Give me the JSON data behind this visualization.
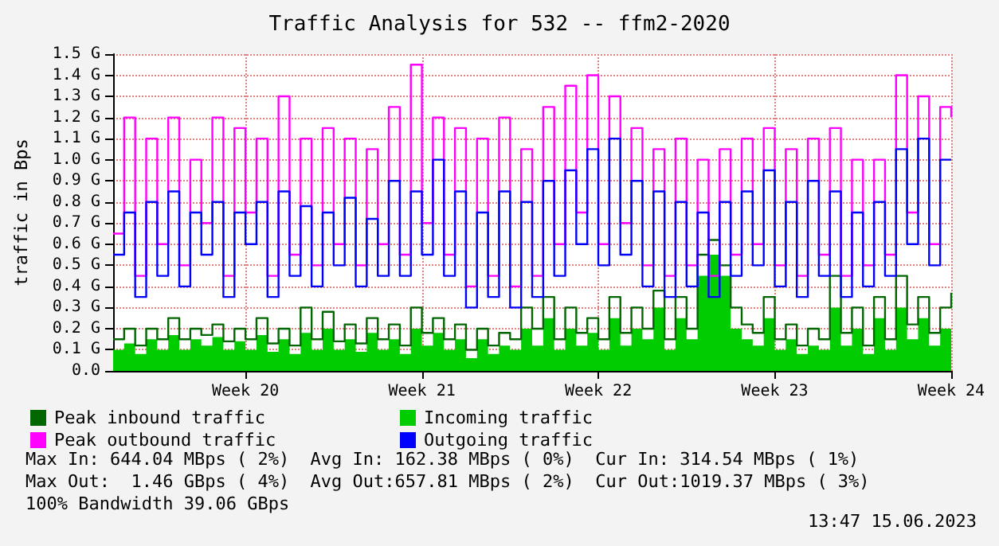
{
  "chart_data": {
    "type": "step",
    "title": "Traffic Analysis for 532 -- ffm2-2020",
    "ylabel": "traffic in Bps",
    "categories": [
      null,
      null,
      null,
      null,
      null,
      null,
      null,
      null,
      null,
      null,
      null,
      null,
      "Week 20",
      null,
      null,
      null,
      null,
      null,
      null,
      null,
      null,
      null,
      null,
      null,
      null,
      null,
      null,
      null,
      "Week 21",
      null,
      null,
      null,
      null,
      null,
      null,
      null,
      null,
      null,
      null,
      null,
      null,
      null,
      null,
      null,
      "Week 22",
      null,
      null,
      null,
      null,
      null,
      null,
      null,
      null,
      null,
      null,
      null,
      null,
      null,
      null,
      null,
      "Week 23",
      null,
      null,
      null,
      null,
      null,
      null,
      null,
      null,
      null,
      null,
      null,
      null,
      null,
      null,
      null,
      "Week 24"
    ],
    "series": [
      {
        "name": "Peak inbound traffic",
        "color": "#006600",
        "values": [
          0.15,
          0.2,
          0.12,
          0.2,
          0.15,
          0.25,
          0.15,
          0.2,
          0.17,
          0.22,
          0.14,
          0.2,
          0.15,
          0.25,
          0.13,
          0.2,
          0.12,
          0.3,
          0.15,
          0.28,
          0.14,
          0.22,
          0.13,
          0.25,
          0.15,
          0.22,
          0.12,
          0.3,
          0.18,
          0.25,
          0.15,
          0.22,
          0.1,
          0.2,
          0.12,
          0.18,
          0.15,
          0.3,
          0.2,
          0.35,
          0.15,
          0.3,
          0.18,
          0.25,
          0.15,
          0.35,
          0.18,
          0.3,
          0.2,
          0.38,
          0.15,
          0.35,
          0.2,
          0.55,
          0.62,
          0.5,
          0.3,
          0.22,
          0.18,
          0.35,
          0.15,
          0.22,
          0.12,
          0.2,
          0.15,
          0.45,
          0.18,
          0.3,
          0.12,
          0.35,
          0.15,
          0.45,
          0.22,
          0.35,
          0.18,
          0.3,
          0.37
        ]
      },
      {
        "name": "Incoming traffic",
        "type": "area",
        "color": "#00cc00",
        "values": [
          0.1,
          0.13,
          0.08,
          0.15,
          0.1,
          0.17,
          0.1,
          0.15,
          0.12,
          0.16,
          0.1,
          0.14,
          0.1,
          0.17,
          0.09,
          0.15,
          0.08,
          0.18,
          0.1,
          0.2,
          0.1,
          0.15,
          0.09,
          0.18,
          0.1,
          0.15,
          0.08,
          0.2,
          0.12,
          0.18,
          0.1,
          0.15,
          0.06,
          0.15,
          0.08,
          0.12,
          0.1,
          0.2,
          0.12,
          0.25,
          0.1,
          0.2,
          0.12,
          0.18,
          0.1,
          0.25,
          0.12,
          0.2,
          0.15,
          0.3,
          0.1,
          0.25,
          0.15,
          0.45,
          0.55,
          0.45,
          0.2,
          0.15,
          0.12,
          0.25,
          0.1,
          0.15,
          0.08,
          0.12,
          0.1,
          0.3,
          0.12,
          0.2,
          0.08,
          0.25,
          0.1,
          0.3,
          0.15,
          0.25,
          0.12,
          0.2,
          0.3
        ]
      },
      {
        "name": "Peak outbound traffic",
        "color": "#ff00ff",
        "values": [
          0.65,
          1.2,
          0.45,
          1.1,
          0.6,
          1.2,
          0.5,
          1.0,
          0.7,
          1.2,
          0.45,
          1.15,
          0.75,
          1.1,
          0.45,
          1.3,
          0.55,
          1.1,
          0.5,
          1.15,
          0.6,
          1.1,
          0.5,
          1.05,
          0.6,
          1.25,
          0.55,
          1.45,
          0.7,
          1.2,
          0.55,
          1.15,
          0.4,
          1.1,
          0.45,
          1.2,
          0.4,
          1.05,
          0.45,
          1.25,
          0.6,
          1.35,
          0.75,
          1.4,
          0.6,
          1.3,
          0.7,
          1.15,
          0.5,
          1.05,
          0.45,
          1.1,
          0.5,
          1.0,
          0.45,
          1.05,
          0.55,
          1.1,
          0.6,
          1.15,
          0.5,
          1.05,
          0.45,
          1.1,
          0.55,
          1.15,
          0.45,
          1.0,
          0.5,
          1.0,
          0.55,
          1.4,
          0.75,
          1.3,
          0.6,
          1.25,
          1.2
        ]
      },
      {
        "name": "Outgoing traffic",
        "color": "#0000ff",
        "values": [
          0.55,
          0.75,
          0.35,
          0.8,
          0.45,
          0.85,
          0.4,
          0.75,
          0.55,
          0.8,
          0.35,
          0.75,
          0.6,
          0.8,
          0.35,
          0.85,
          0.45,
          0.78,
          0.4,
          0.75,
          0.5,
          0.82,
          0.4,
          0.72,
          0.45,
          0.9,
          0.45,
          0.85,
          0.55,
          1.0,
          0.45,
          0.85,
          0.3,
          0.75,
          0.35,
          0.85,
          0.3,
          0.8,
          0.35,
          0.9,
          0.45,
          0.95,
          0.6,
          1.05,
          0.5,
          1.1,
          0.55,
          0.9,
          0.4,
          0.85,
          0.35,
          0.8,
          0.4,
          0.75,
          0.35,
          0.8,
          0.45,
          0.85,
          0.5,
          0.95,
          0.4,
          0.8,
          0.35,
          0.9,
          0.45,
          0.85,
          0.35,
          0.75,
          0.4,
          0.8,
          0.45,
          1.05,
          0.6,
          1.1,
          0.5,
          1.0,
          1.0
        ]
      }
    ],
    "ylim": [
      0,
      1.5
    ],
    "yticks": [
      {
        "value": 0,
        "label": "0.0"
      },
      {
        "value": 0.1,
        "label": "0.1 G"
      },
      {
        "value": 0.2,
        "label": "0.2 G"
      },
      {
        "value": 0.3,
        "label": "0.3 G"
      },
      {
        "value": 0.4,
        "label": "0.4 G"
      },
      {
        "value": 0.5,
        "label": "0.5 G"
      },
      {
        "value": 0.6,
        "label": "0.6 G"
      },
      {
        "value": 0.7,
        "label": "0.7 G"
      },
      {
        "value": 0.8,
        "label": "0.8 G"
      },
      {
        "value": 0.9,
        "label": "0.9 G"
      },
      {
        "value": 1.0,
        "label": "1.0 G"
      },
      {
        "value": 1.1,
        "label": "1.1 G"
      },
      {
        "value": 1.2,
        "label": "1.2 G"
      },
      {
        "value": 1.3,
        "label": "1.3 G"
      },
      {
        "value": 1.4,
        "label": "1.4 G"
      },
      {
        "value": 1.5,
        "label": "1.5 G"
      }
    ],
    "grid": true,
    "legend": "bottom",
    "marker": "none",
    "annotations": [
      "Max In: 644.04 MBps ( 2%)  Avg In: 162.38 MBps ( 0%)  Cur In: 314.54 MBps ( 1%)",
      "Max Out:  1.46 GBps ( 4%)  Avg Out:657.81 MBps ( 2%)  Cur Out:1019.37 MBps ( 3%)",
      "100% Bandwidth 39.06 GBps",
      "13:47 15.06.2023"
    ]
  }
}
